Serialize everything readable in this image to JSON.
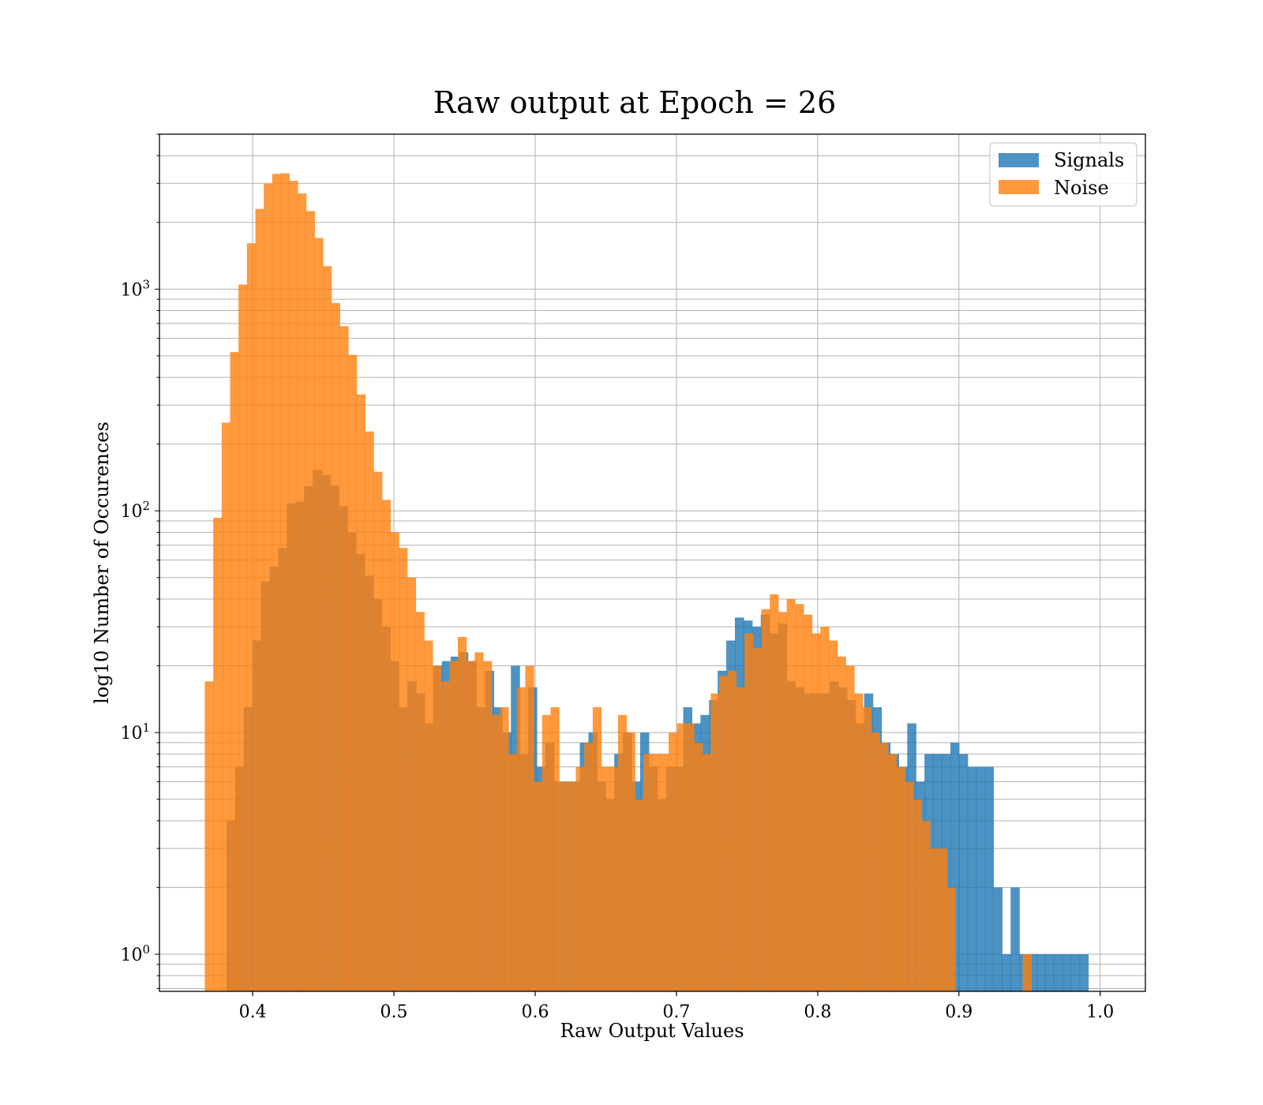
{
  "chart_data": {
    "type": "histogram",
    "title": "Raw output at Epoch = 26",
    "xlabel": "Raw Output Values",
    "ylabel": "log10 Number of Occurences",
    "xlim": [
      0.334,
      1.032
    ],
    "ylim": [
      0.68,
      5000
    ],
    "yscale": "log",
    "grid": true,
    "legend_position": "top-right",
    "x_ticks": [
      {
        "value": 0.4,
        "label": "0.4"
      },
      {
        "value": 0.5,
        "label": "0.5"
      },
      {
        "value": 0.6,
        "label": "0.6"
      },
      {
        "value": 0.7,
        "label": "0.7"
      },
      {
        "value": 0.8,
        "label": "0.8"
      },
      {
        "value": 0.9,
        "label": "0.9"
      },
      {
        "value": 1.0,
        "label": "1.0"
      }
    ],
    "y_ticks": [
      {
        "value": 1,
        "base": "10",
        "exp": "0"
      },
      {
        "value": 10,
        "base": "10",
        "exp": "1"
      },
      {
        "value": 100,
        "base": "10",
        "exp": "2"
      },
      {
        "value": 1000,
        "base": "10",
        "exp": "3"
      }
    ],
    "series": [
      {
        "name": "Signals",
        "color": "#1f77b4",
        "opacity": 0.8,
        "bin_start": 0.3815,
        "bin_width": 0.0061,
        "counts": [
          4,
          7,
          13,
          26,
          48,
          56,
          68,
          108,
          110,
          129,
          153,
          145,
          130,
          105,
          80,
          64,
          51,
          40,
          30,
          21,
          13,
          17,
          15,
          11,
          20,
          21,
          22,
          23,
          21,
          13,
          19,
          13,
          10,
          20,
          8,
          16,
          7,
          9,
          6,
          6,
          6,
          9,
          10,
          6,
          5,
          8,
          10,
          6,
          10,
          7,
          5,
          7,
          7,
          13,
          11,
          12,
          14,
          19,
          26,
          33,
          32,
          30,
          34,
          28,
          31,
          17,
          16,
          15,
          15,
          15,
          17,
          16,
          14,
          11,
          15,
          13,
          9,
          8,
          7,
          11,
          6,
          8,
          8,
          8,
          9,
          8,
          7,
          7,
          7,
          2,
          1,
          2,
          1,
          1,
          1,
          1,
          1,
          1,
          1,
          1
        ]
      },
      {
        "name": "Noise",
        "color": "#ff7f0e",
        "opacity": 0.8,
        "bin_start": 0.3661,
        "bin_width": 0.00597,
        "counts": [
          17,
          93,
          250,
          520,
          1050,
          1610,
          2300,
          2990,
          3310,
          3330,
          3080,
          2700,
          2250,
          1700,
          1270,
          865,
          680,
          505,
          335,
          228,
          150,
          112,
          80,
          68,
          50,
          35,
          26,
          20,
          17,
          21,
          27,
          21,
          23,
          21,
          12,
          13,
          8,
          16,
          20,
          6,
          12,
          13,
          6,
          6,
          7,
          9,
          13,
          7,
          7,
          12,
          10,
          5,
          8,
          8,
          8,
          10,
          11,
          11,
          9,
          8,
          15,
          18,
          19,
          16,
          28,
          24,
          36,
          42,
          35,
          40,
          38,
          34,
          28,
          30,
          26,
          22,
          20,
          15,
          13,
          10,
          9,
          8,
          7,
          6,
          5,
          4,
          3,
          3,
          2,
          0,
          0,
          0,
          0,
          0,
          0,
          0,
          0,
          1,
          0,
          0
        ]
      }
    ]
  }
}
